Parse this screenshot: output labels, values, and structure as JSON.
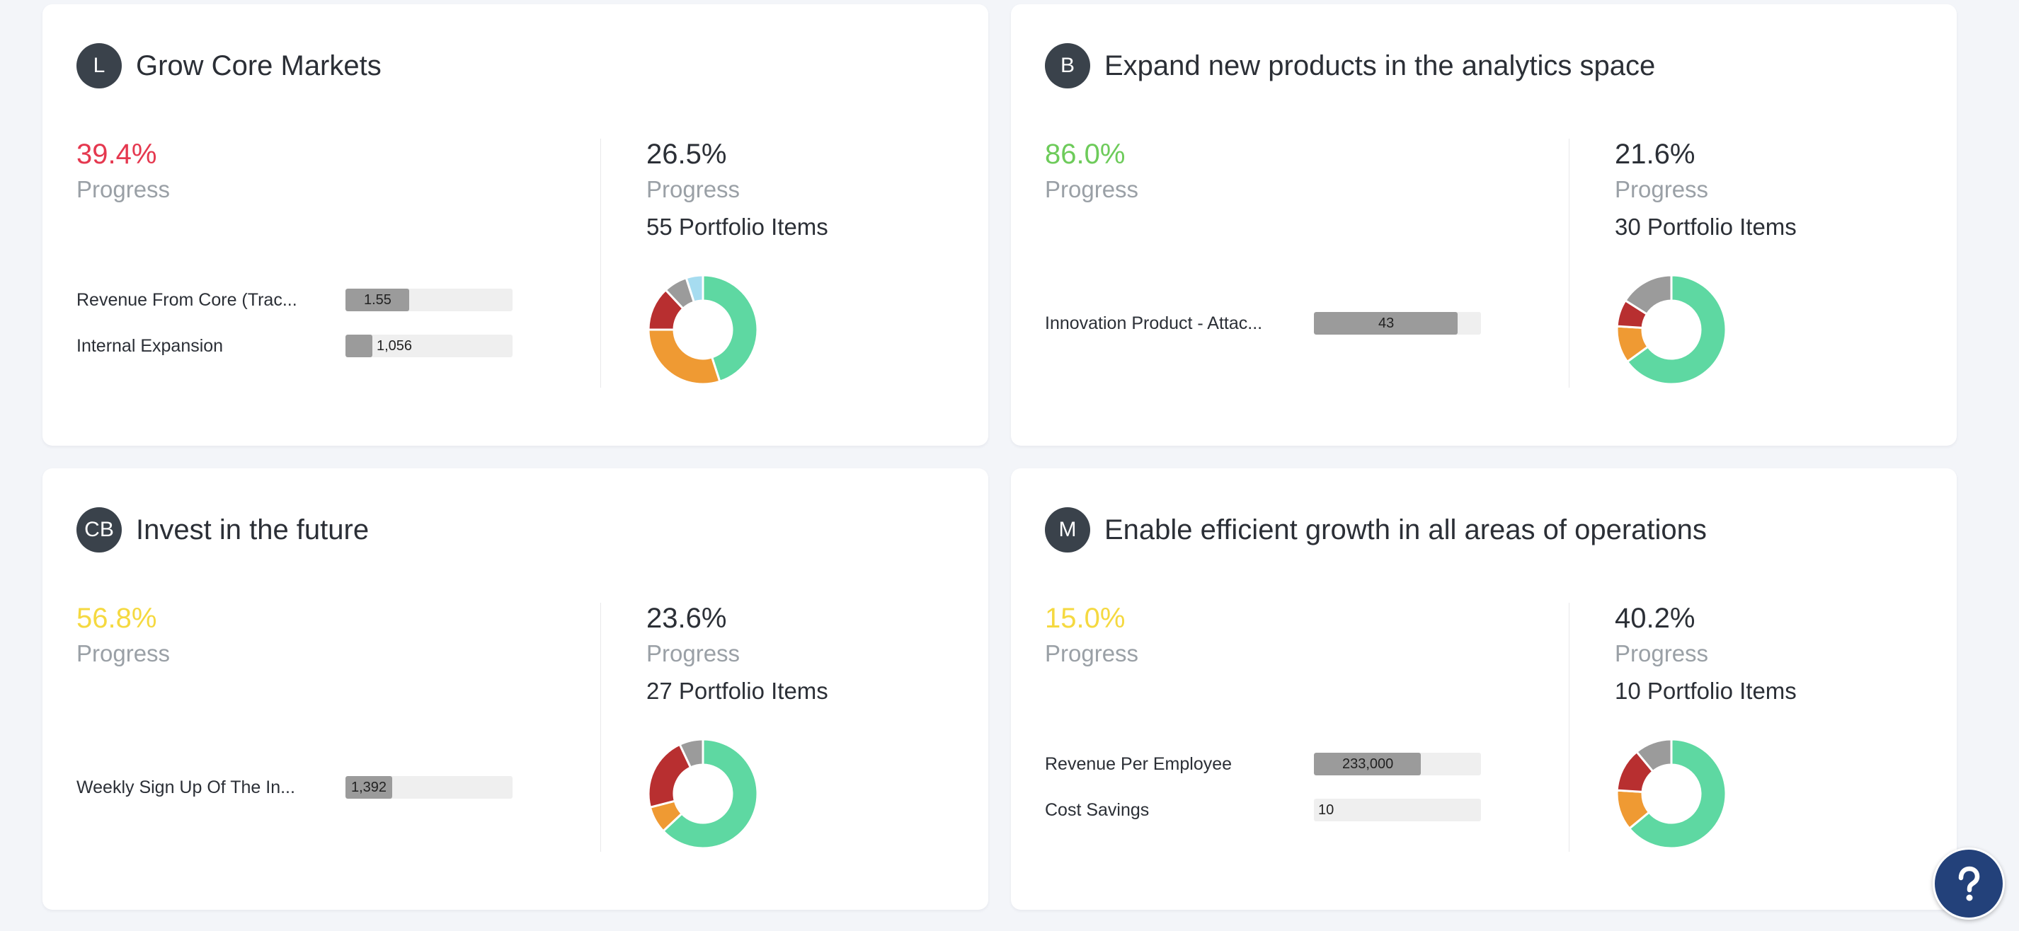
{
  "goals": [
    {
      "avatar": "L",
      "title": "Grow Core Markets",
      "progress": "39.4%",
      "progress_color": "#e5384f",
      "progress_label": "Progress",
      "kpis": [
        {
          "name": "Revenue From Core (Trac...",
          "value": "1.55",
          "fill_fraction": 0.38
        },
        {
          "name": "Internal Expansion",
          "value": "1,056",
          "fill_fraction": 0.16
        }
      ],
      "portfolio_progress": "26.5%",
      "portfolio_progress_label": "Progress",
      "portfolio_items": "55 Portfolio Items",
      "donut": [
        {
          "color": "#5ed8a2",
          "fraction": 0.45
        },
        {
          "color": "#ef9a33",
          "fraction": 0.3
        },
        {
          "color": "#b82f30",
          "fraction": 0.13
        },
        {
          "color": "#9b9b9b",
          "fraction": 0.07
        },
        {
          "color": "#a6dcf0",
          "fraction": 0.05
        }
      ]
    },
    {
      "avatar": "B",
      "title": "Expand new products in the analytics space",
      "progress": "86.0%",
      "progress_color": "#6dcb5a",
      "progress_label": "Progress",
      "kpis": [
        {
          "name": "Innovation Product - Attac...",
          "value": "43",
          "fill_fraction": 0.86
        }
      ],
      "portfolio_progress": "21.6%",
      "portfolio_progress_label": "Progress",
      "portfolio_items": "30 Portfolio Items",
      "donut": [
        {
          "color": "#5ed8a2",
          "fraction": 0.65
        },
        {
          "color": "#ef9a33",
          "fraction": 0.11
        },
        {
          "color": "#b82f30",
          "fraction": 0.08
        },
        {
          "color": "#9b9b9b",
          "fraction": 0.16
        }
      ]
    },
    {
      "avatar": "CB",
      "title": "Invest in the future",
      "progress": "56.8%",
      "progress_color": "#f5d940",
      "progress_label": "Progress",
      "kpis": [
        {
          "name": "Weekly Sign Up Of The In...",
          "value": "1,392",
          "fill_fraction": 0.28
        }
      ],
      "portfolio_progress": "23.6%",
      "portfolio_progress_label": "Progress",
      "portfolio_items": "27 Portfolio Items",
      "donut": [
        {
          "color": "#5ed8a2",
          "fraction": 0.63
        },
        {
          "color": "#ef9a33",
          "fraction": 0.08
        },
        {
          "color": "#b82f30",
          "fraction": 0.22
        },
        {
          "color": "#9b9b9b",
          "fraction": 0.07
        }
      ]
    },
    {
      "avatar": "M",
      "title": "Enable efficient growth in all areas of operations",
      "progress": "15.0%",
      "progress_color": "#f5d940",
      "progress_label": "Progress",
      "kpis": [
        {
          "name": "Revenue Per Employee",
          "value": "233,000",
          "fill_fraction": 0.64
        },
        {
          "name": "Cost Savings",
          "value": "10",
          "fill_fraction": 0.0
        }
      ],
      "portfolio_progress": "40.2%",
      "portfolio_progress_label": "Progress",
      "portfolio_items": "10 Portfolio Items",
      "donut": [
        {
          "color": "#5ed8a2",
          "fraction": 0.64
        },
        {
          "color": "#ef9a33",
          "fraction": 0.12
        },
        {
          "color": "#b82f30",
          "fraction": 0.13
        },
        {
          "color": "#9b9b9b",
          "fraction": 0.11
        }
      ]
    }
  ],
  "help": {
    "icon": "question-icon",
    "glyph": "?"
  }
}
